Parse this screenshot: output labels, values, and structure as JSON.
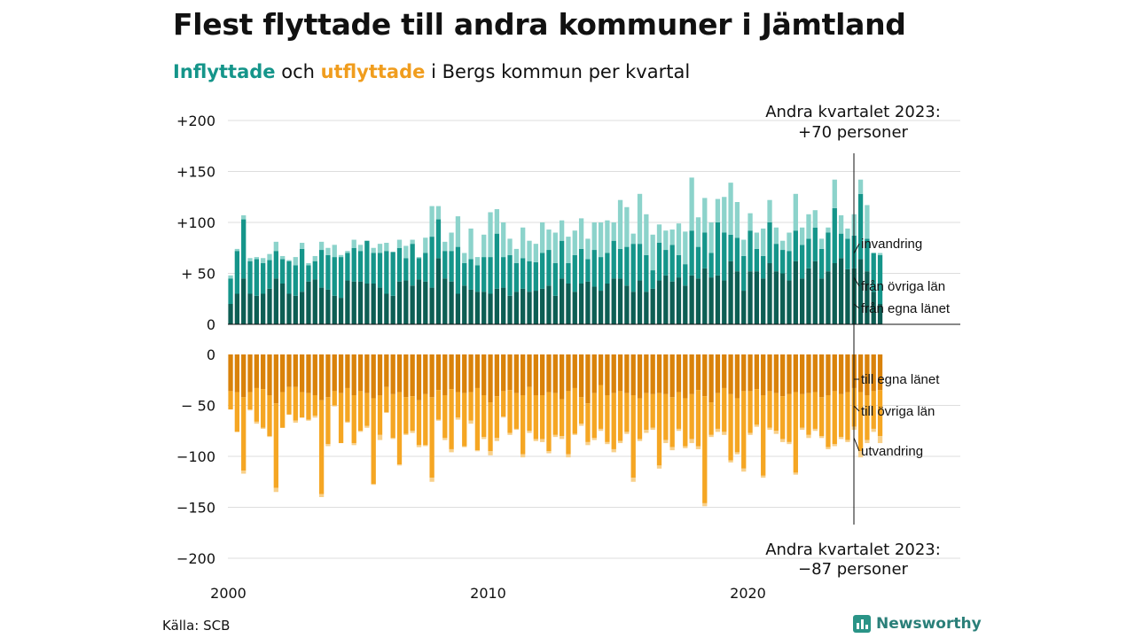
{
  "title": "Flest flyttade till andra kommuner i Jämtland",
  "subtitle": {
    "in_word": "Inflyttade",
    "mid": " och ",
    "out_word": "utflyttade",
    "rest": " i Bergs kommun per kvartal"
  },
  "source": "Källa: SCB",
  "logo": {
    "name": "Newsworthy",
    "icon": "bar-chart-icon"
  },
  "colors": {
    "in_dark": "#0d5e54",
    "in_mid": "#15958a",
    "in_light": "#8cd3cb",
    "out_dark": "#d9820a",
    "out_mid": "#f5a623",
    "out_light": "#f8d08a",
    "grid": "#dddddd"
  },
  "chart_data": {
    "type": "bar",
    "stacked": true,
    "x_start": "2000 Q1",
    "x_ticks": [
      "2000",
      "2010",
      "2020"
    ],
    "top_panel": {
      "ylim": [
        0,
        200
      ],
      "ticks": [
        0,
        50,
        100,
        150,
        200
      ],
      "tick_labels": [
        "0",
        "+ 50",
        "+100",
        "+150",
        "+200"
      ],
      "annotation": [
        "Andra kvartalet 2023:",
        "+70 personer"
      ],
      "series": [
        {
          "name": "från egna länet",
          "values": [
            20,
            30,
            45,
            30,
            28,
            30,
            35,
            45,
            40,
            30,
            28,
            32,
            42,
            44,
            36,
            34,
            28,
            26,
            43,
            42,
            42,
            40,
            40,
            36,
            30,
            28,
            42,
            43,
            38,
            44,
            42,
            36,
            65,
            45,
            42,
            30,
            38,
            34,
            32,
            32,
            30,
            35,
            36,
            28,
            32,
            35,
            32,
            33,
            35,
            38,
            28,
            45,
            40,
            32,
            40,
            42,
            37,
            33,
            40,
            45,
            45,
            38,
            32,
            43,
            32,
            35,
            43,
            48,
            42,
            46,
            38,
            48,
            45,
            55,
            46,
            48,
            43,
            62,
            52,
            33,
            52,
            52,
            45,
            60,
            52,
            50,
            43,
            62,
            45,
            55,
            62,
            45,
            52,
            60,
            65,
            54,
            55,
            64,
            52,
            32,
            20
          ]
        },
        {
          "name": "från övriga län",
          "values": [
            25,
            42,
            58,
            32,
            36,
            30,
            28,
            27,
            24,
            32,
            30,
            42,
            16,
            18,
            37,
            34,
            38,
            40,
            27,
            33,
            30,
            42,
            30,
            34,
            42,
            43,
            33,
            22,
            41,
            21,
            28,
            50,
            38,
            27,
            30,
            46,
            22,
            30,
            26,
            34,
            36,
            54,
            30,
            40,
            28,
            30,
            30,
            28,
            35,
            35,
            32,
            37,
            20,
            36,
            34,
            22,
            36,
            33,
            30,
            37,
            29,
            38,
            47,
            36,
            36,
            18,
            37,
            25,
            36,
            22,
            21,
            44,
            31,
            35,
            24,
            52,
            47,
            26,
            33,
            34,
            40,
            22,
            22,
            40,
            27,
            23,
            29,
            30,
            33,
            29,
            33,
            29,
            38,
            54,
            24,
            30,
            32,
            64,
            32,
            38,
            48
          ]
        },
        {
          "name": "invandring",
          "values": [
            3,
            2,
            4,
            3,
            2,
            5,
            6,
            9,
            3,
            1,
            8,
            6,
            2,
            5,
            8,
            7,
            12,
            2,
            2,
            8,
            6,
            0,
            5,
            9,
            8,
            0,
            8,
            12,
            4,
            1,
            15,
            30,
            13,
            9,
            18,
            30,
            10,
            30,
            8,
            22,
            44,
            24,
            34,
            16,
            14,
            30,
            20,
            18,
            30,
            20,
            30,
            20,
            26,
            24,
            30,
            20,
            27,
            34,
            32,
            18,
            48,
            39,
            10,
            49,
            40,
            35,
            18,
            19,
            15,
            31,
            32,
            52,
            29,
            34,
            30,
            23,
            35,
            51,
            35,
            16,
            17,
            16,
            27,
            22,
            16,
            9,
            18,
            36,
            17,
            24,
            17,
            10,
            5,
            28,
            18,
            10,
            21,
            14,
            33,
            0,
            2
          ]
        }
      ]
    },
    "bottom_panel": {
      "ylim": [
        -200,
        0
      ],
      "ticks": [
        0,
        -50,
        -100,
        -150,
        -200
      ],
      "tick_labels": [
        "0",
        "− 50",
        "−100",
        "−150",
        "−200"
      ],
      "annotation": [
        "Andra kvartalet 2023:",
        "−87 personer"
      ],
      "series": [
        {
          "name": "till egna länet",
          "values": [
            -36,
            -37,
            -42,
            -37,
            -33,
            -34,
            -40,
            -48,
            -37,
            -32,
            -32,
            -37,
            -38,
            -40,
            -45,
            -42,
            -36,
            -38,
            -33,
            -40,
            -36,
            -38,
            -43,
            -40,
            -32,
            -39,
            -37,
            -42,
            -41,
            -45,
            -39,
            -42,
            -35,
            -40,
            -34,
            -37,
            -38,
            -37,
            -33,
            -40,
            -47,
            -41,
            -36,
            -35,
            -38,
            -40,
            -32,
            -40,
            -40,
            -37,
            -38,
            -44,
            -36,
            -33,
            -42,
            -48,
            -38,
            -30,
            -40,
            -38,
            -36,
            -38,
            -40,
            -43,
            -38,
            -39,
            -38,
            -39,
            -42,
            -37,
            -43,
            -39,
            -35,
            -41,
            -47,
            -38,
            -33,
            -39,
            -43,
            -36,
            -36,
            -34,
            -40,
            -36,
            -38,
            -41,
            -39,
            -37,
            -39,
            -38,
            -37,
            -42,
            -40,
            -36,
            -39,
            -37,
            -33,
            -37,
            -40,
            -36,
            -35
          ]
        },
        {
          "name": "till övriga län",
          "values": [
            -18,
            -39,
            -72,
            -17,
            -33,
            -38,
            -40,
            -83,
            -35,
            -27,
            -33,
            -25,
            -26,
            -20,
            -92,
            -46,
            -14,
            -49,
            -33,
            -47,
            -39,
            -32,
            -84,
            -39,
            -25,
            -43,
            -71,
            -36,
            -34,
            -44,
            -50,
            -79,
            -29,
            -42,
            -59,
            -25,
            -52,
            -28,
            -61,
            -41,
            -48,
            -41,
            -25,
            -42,
            -35,
            -58,
            -43,
            -43,
            -43,
            -58,
            -41,
            -36,
            -62,
            -45,
            -26,
            -38,
            -44,
            -43,
            -46,
            -55,
            -49,
            -38,
            -81,
            -40,
            -36,
            -33,
            -71,
            -45,
            -49,
            -36,
            -47,
            -44,
            -55,
            -105,
            -32,
            -35,
            -43,
            -65,
            -53,
            -76,
            -41,
            -35,
            -79,
            -36,
            -37,
            -42,
            -47,
            -79,
            -33,
            -41,
            -36,
            -38,
            -51,
            -52,
            -42,
            -47,
            -38,
            -58,
            -44,
            -37,
            -45
          ]
        },
        {
          "name": "utvandring",
          "values": [
            0,
            0,
            -3,
            -1,
            -2,
            -1,
            -1,
            -4,
            0,
            0,
            -2,
            0,
            -1,
            -2,
            -3,
            -2,
            -1,
            0,
            -1,
            -2,
            -1,
            -2,
            -1,
            -5,
            0,
            -1,
            -1,
            -1,
            -2,
            -2,
            -1,
            -4,
            -1,
            -2,
            -3,
            -2,
            -1,
            -3,
            -1,
            -2,
            -4,
            -3,
            -1,
            -2,
            -1,
            -3,
            -2,
            -2,
            -3,
            -2,
            -2,
            -3,
            -3,
            -1,
            -2,
            -3,
            -2,
            -2,
            -2,
            -3,
            -2,
            -2,
            -4,
            -2,
            -3,
            -2,
            -3,
            -3,
            -3,
            -2,
            -2,
            -4,
            -3,
            -3,
            -2,
            -3,
            -3,
            -2,
            -2,
            -3,
            -2,
            -2,
            -2,
            -2,
            -3,
            -3,
            -2,
            -2,
            -2,
            -3,
            -2,
            -2,
            -2,
            -2,
            -2,
            -2,
            -3,
            -6,
            -3,
            -3,
            -7
          ]
        }
      ]
    }
  }
}
